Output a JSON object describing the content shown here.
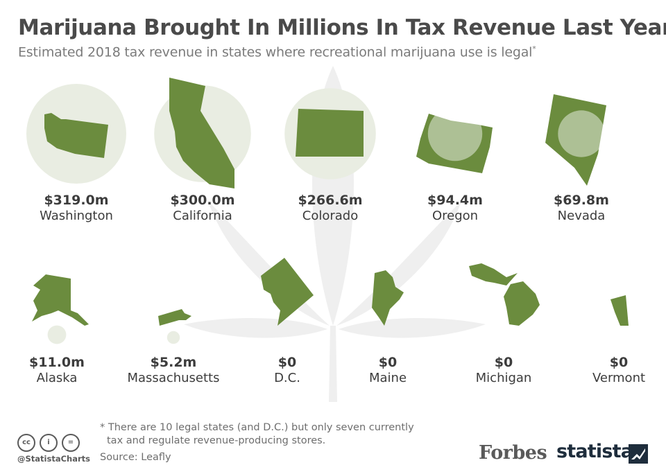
{
  "title": "Marijuana Brought In Millions In Tax Revenue Last Year",
  "subtitle": "Estimated 2018 tax revenue in states where recreational marijuana use is legal",
  "subtitle_mark": "*",
  "footnote": {
    "line1": "* There are 10 legal states (and D.C.) but only seven currently",
    "line2": "tax and regulate revenue-producing stores."
  },
  "source": "Source: Leafly",
  "credit": {
    "handle": "@StatistaCharts",
    "cc_icons": [
      "cc-icon",
      "by-icon",
      "nd-icon"
    ],
    "cc_labels": [
      "cc",
      "i",
      "="
    ]
  },
  "brands": {
    "forbes": "Forbes",
    "statista": "statista"
  },
  "colors": {
    "state_fill": "#6b8c3e",
    "bubble_fill": "#e9ede2",
    "bubble_overlay": "#ffffff",
    "background_leaf": "#f0f0f0",
    "text": "#3c3c3c"
  },
  "chart_data": {
    "type": "bubble",
    "title": "Marijuana Brought In Millions In Tax Revenue Last Year",
    "subtitle": "Estimated 2018 tax revenue in states where recreational marijuana use is legal*",
    "unit": "million USD",
    "series": [
      {
        "categories": [
          "Washington",
          "California",
          "Colorado",
          "Oregon",
          "Nevada",
          "Alaska",
          "Massachusetts",
          "D.C.",
          "Maine",
          "Michigan",
          "Vermont"
        ],
        "values": [
          319.0,
          300.0,
          266.6,
          94.4,
          69.8,
          11.0,
          5.2,
          0,
          0,
          0,
          0
        ],
        "labels": [
          "$319.0m",
          "$300.0m",
          "$266.6m",
          "$94.4m",
          "$69.8m",
          "$11.0m",
          "$5.2m",
          "$0",
          "$0",
          "$0",
          "$0"
        ]
      }
    ]
  }
}
